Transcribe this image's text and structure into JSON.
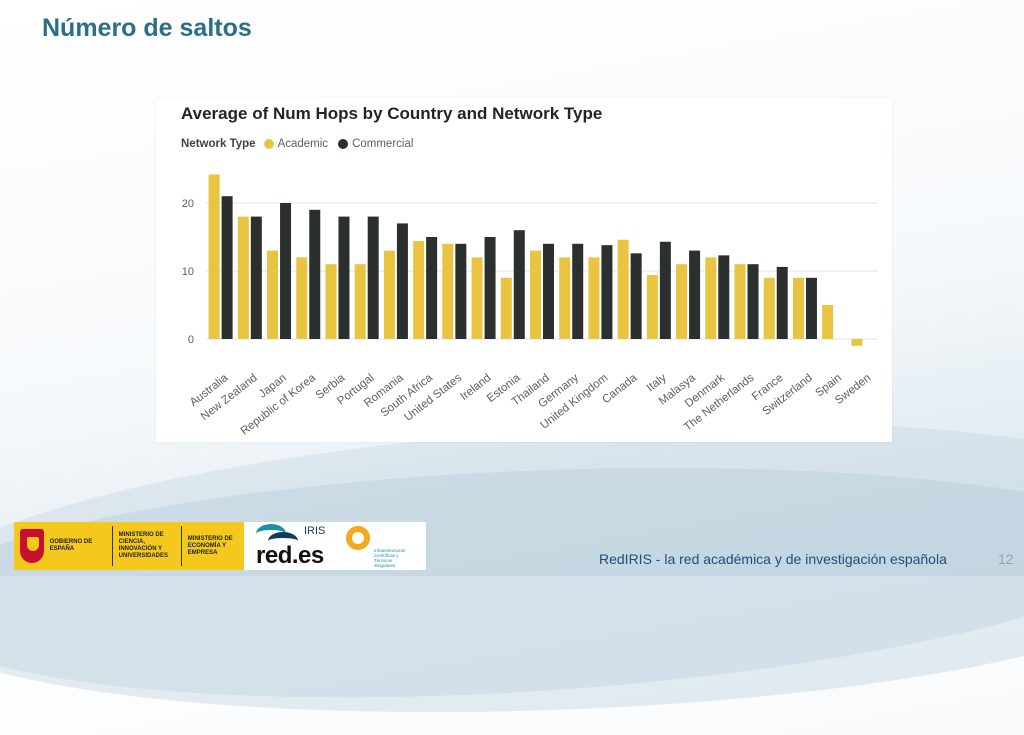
{
  "slide": {
    "title": "Número de saltos",
    "footer_text": "RedIRIS - la red académica y de investigación española",
    "page_number": "12"
  },
  "logos": {
    "gov_text_1": "GOBIERNO DE ESPAÑA",
    "gov_text_2": "MINISTERIO DE CIENCIA, INNOVACIÓN Y UNIVERSIDADES",
    "gov_text_3": "MINISTERIO DE ECONOMÍA Y EMPRESA",
    "rediris_top": "IRIS",
    "rediris_main": "red.es",
    "ict_text": "Infraestructuras Científicas y Técnicas Singulares"
  },
  "chart_data": {
    "type": "bar",
    "title": "Average of Num Hops by Country and Network Type",
    "legend_title": "Network Type",
    "legend_position": "top-left",
    "xlabel": "",
    "ylabel": "",
    "ylim": [
      -1.5,
      25
    ],
    "yticks": [
      0,
      10,
      20
    ],
    "grid": true,
    "categories": [
      "Australia",
      "New Zealand",
      "Japan",
      "Republic of Korea",
      "Serbia",
      "Portugal",
      "Romania",
      "South Africa",
      "United States",
      "Ireland",
      "Estonia",
      "Thailand",
      "Germany",
      "United Kingdom",
      "Canada",
      "Italy",
      "Malasya",
      "Denmark",
      "The Netherlands",
      "France",
      "Switzerland",
      "Spain",
      "Sweden"
    ],
    "series": [
      {
        "name": "Academic",
        "color": "#e8c440",
        "values": [
          24.2,
          18,
          13,
          12,
          11,
          11,
          13,
          14.4,
          14,
          12,
          9,
          13,
          12,
          12,
          14.6,
          9.4,
          11,
          12,
          11,
          9,
          9,
          5,
          -1
        ]
      },
      {
        "name": "Commercial",
        "color": "#2b2f2d",
        "values": [
          21,
          18,
          20,
          19,
          18,
          18,
          17,
          15,
          14,
          15,
          16,
          14,
          14,
          13.8,
          12.6,
          14.3,
          13,
          12.3,
          11,
          10.6,
          9,
          null,
          null
        ]
      }
    ]
  }
}
